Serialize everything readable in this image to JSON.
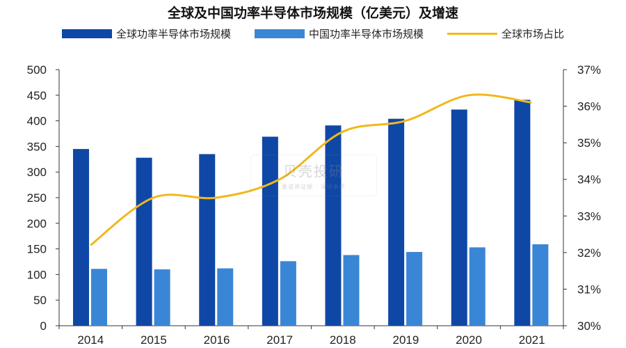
{
  "chart_data": {
    "type": "bar",
    "title": "全球及中国功率半导体市场规模（亿美元）及增速",
    "categories": [
      "2014",
      "2015",
      "2016",
      "2017",
      "2018",
      "2019",
      "2020",
      "2021"
    ],
    "series": [
      {
        "name": "全球功率半导体市场规模",
        "type": "bar",
        "axis": "left",
        "color": "#0f47a6",
        "values": [
          345,
          328,
          335,
          369,
          391,
          404,
          422,
          441
        ]
      },
      {
        "name": "中国功率半导体市场规模",
        "type": "bar",
        "axis": "left",
        "color": "#3a86d6",
        "values": [
          111,
          110,
          112,
          126,
          138,
          144,
          153,
          159
        ]
      },
      {
        "name": "全球市场占比",
        "type": "line",
        "axis": "right",
        "color": "#f0b81c",
        "smooth": true,
        "values": [
          32.2,
          33.5,
          33.5,
          34.0,
          35.3,
          35.6,
          36.3,
          36.1
        ]
      }
    ],
    "yaxis_left": {
      "min": 0,
      "max": 500,
      "ticks": [
        "0",
        "50",
        "100",
        "150",
        "200",
        "250",
        "300",
        "350",
        "400",
        "450",
        "500"
      ]
    },
    "yaxis_right": {
      "min": 30,
      "max": 37,
      "ticks": [
        "30%",
        "31%",
        "32%",
        "33%",
        "34%",
        "35%",
        "36%",
        "37%"
      ]
    },
    "grid": false,
    "legend_position": "top"
  },
  "watermark": {
    "text": "贝壳投研",
    "subtext": "泰诺将证据 · 深研本质"
  }
}
